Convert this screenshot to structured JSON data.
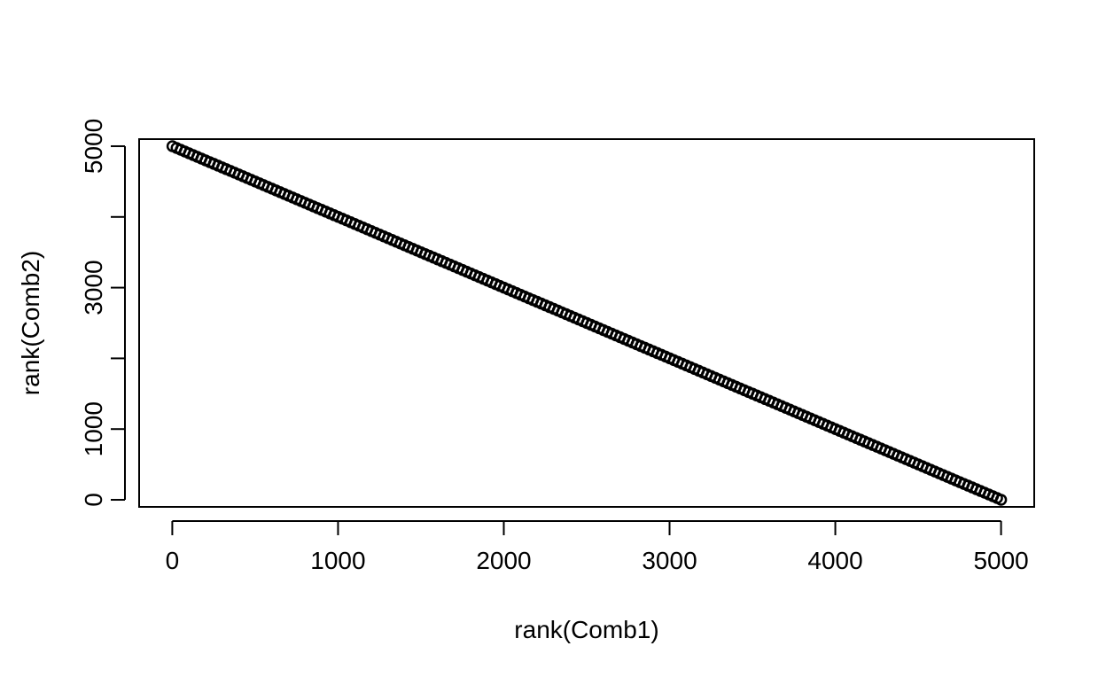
{
  "chart_data": {
    "type": "scatter",
    "title": "",
    "xlabel": "rank(Comb1)",
    "ylabel": "rank(Comb2)",
    "xlim": [
      -200,
      5200
    ],
    "ylim": [
      -100,
      5100
    ],
    "x_ticks": [
      0,
      1000,
      2000,
      3000,
      4000,
      5000
    ],
    "y_ticks": [
      0,
      1000,
      2000,
      3000,
      4000,
      5000
    ],
    "y_tick_labels_shown": [
      0,
      1000,
      3000,
      5000
    ],
    "grid": false,
    "legend": "none",
    "point_color": "#000000",
    "series": [
      {
        "relation": "rank(Comb2) = 5001 - rank(Comb1)",
        "n_points": 5000,
        "x_start": 1,
        "x_end": 5000,
        "y_start": 5000,
        "y_end": 1
      }
    ]
  }
}
